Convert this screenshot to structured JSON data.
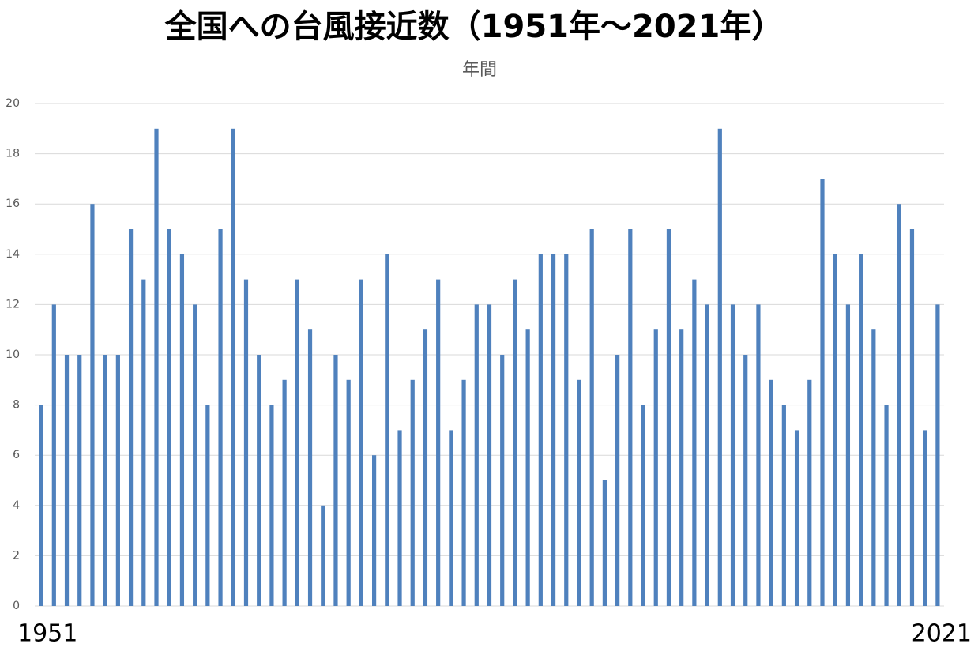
{
  "chart_data": {
    "type": "bar",
    "title": "全国への台風接近数（1951年～2021年）",
    "subtitle": "年間",
    "categories": [
      "1951",
      null,
      null,
      null,
      null,
      null,
      null,
      null,
      null,
      null,
      null,
      null,
      null,
      null,
      null,
      null,
      null,
      null,
      null,
      null,
      null,
      null,
      null,
      null,
      null,
      null,
      null,
      null,
      null,
      null,
      null,
      null,
      null,
      null,
      null,
      null,
      null,
      null,
      null,
      null,
      null,
      null,
      null,
      null,
      null,
      null,
      null,
      null,
      null,
      null,
      null,
      null,
      null,
      null,
      null,
      null,
      null,
      null,
      null,
      null,
      null,
      null,
      null,
      null,
      null,
      null,
      null,
      null,
      null,
      null,
      "2021"
    ],
    "values": [
      8,
      12,
      10,
      10,
      16,
      10,
      10,
      15,
      13,
      19,
      15,
      14,
      12,
      8,
      15,
      19,
      13,
      10,
      8,
      9,
      13,
      11,
      4,
      10,
      9,
      13,
      6,
      14,
      7,
      9,
      11,
      13,
      7,
      9,
      12,
      12,
      10,
      13,
      11,
      14,
      14,
      14,
      9,
      15,
      5,
      10,
      15,
      8,
      11,
      15,
      11,
      13,
      12,
      19,
      12,
      10,
      12,
      9,
      8,
      7,
      9,
      17,
      14,
      12,
      14,
      11,
      8,
      16,
      15,
      7,
      12
    ],
    "color": "#4f81bd",
    "ylim": [
      0,
      20
    ],
    "yticks": [
      0,
      2,
      4,
      6,
      8,
      10,
      12,
      14,
      16,
      18,
      20
    ],
    "grid": true
  }
}
